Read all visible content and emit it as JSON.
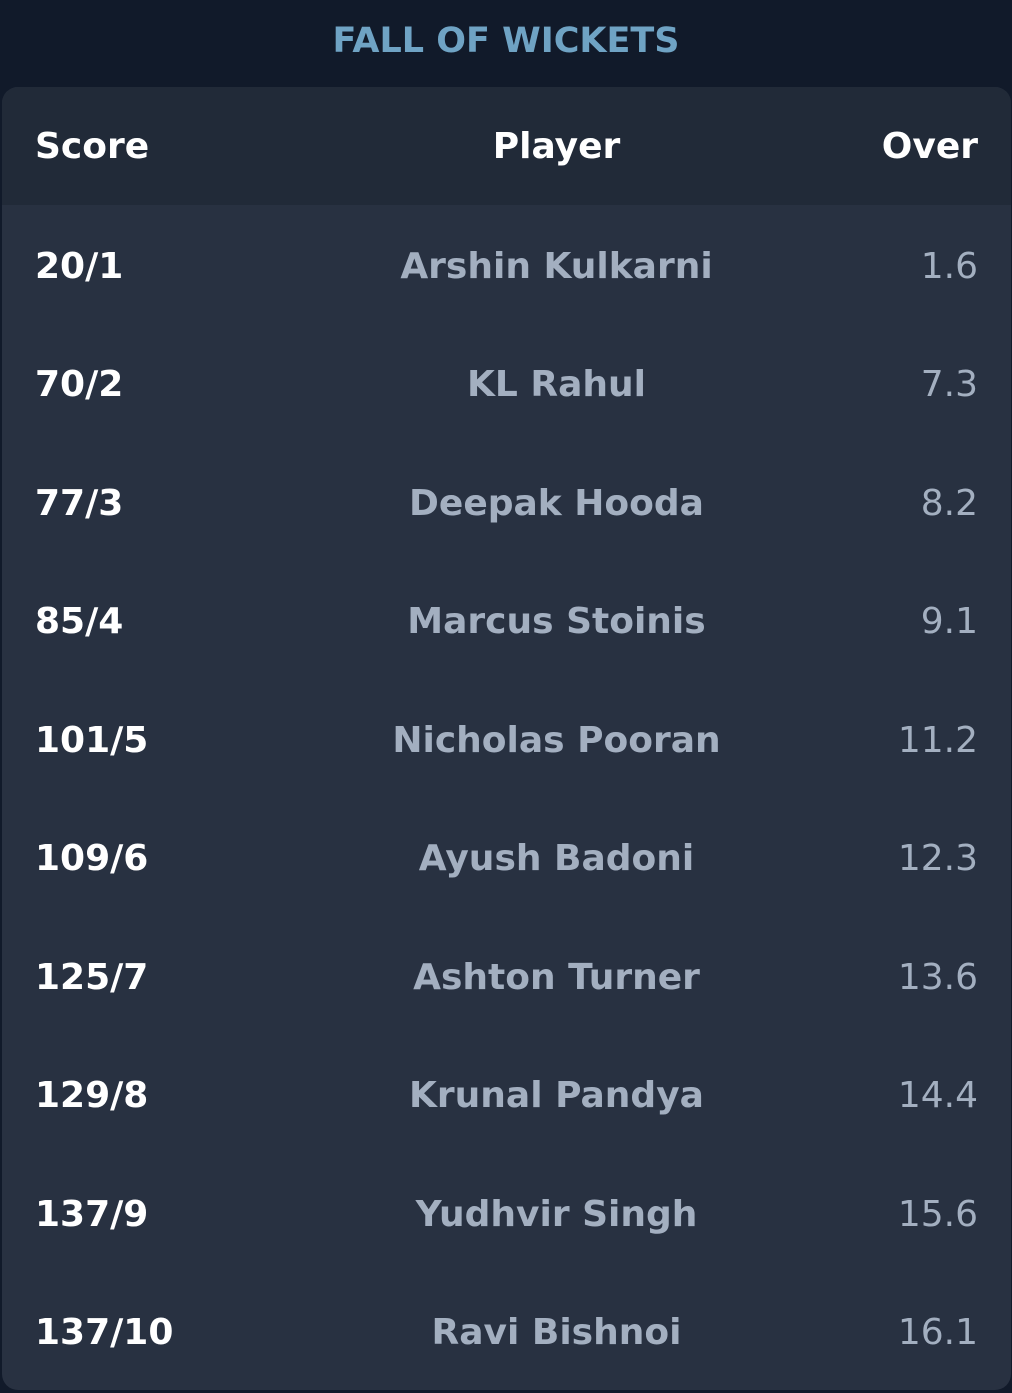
{
  "section": {
    "title": "FALL OF WICKETS"
  },
  "table": {
    "headers": {
      "score": "Score",
      "player": "Player",
      "over": "Over"
    },
    "rows": [
      {
        "score": "20/1",
        "player": "Arshin Kulkarni",
        "over": "1.6"
      },
      {
        "score": "70/2",
        "player": "KL Rahul",
        "over": "7.3"
      },
      {
        "score": "77/3",
        "player": "Deepak Hooda",
        "over": "8.2"
      },
      {
        "score": "85/4",
        "player": "Marcus Stoinis",
        "over": "9.1"
      },
      {
        "score": "101/5",
        "player": "Nicholas Pooran",
        "over": "11.2"
      },
      {
        "score": "109/6",
        "player": "Ayush Badoni",
        "over": "12.3"
      },
      {
        "score": "125/7",
        "player": "Ashton Turner",
        "over": "13.6"
      },
      {
        "score": "129/8",
        "player": "Krunal Pandya",
        "over": "14.4"
      },
      {
        "score": "137/9",
        "player": "Yudhvir Singh",
        "over": "15.6"
      },
      {
        "score": "137/10",
        "player": "Ravi Bishnoi",
        "over": "16.1"
      }
    ]
  },
  "colors": {
    "page_background": "#111a2a",
    "card_background": "#283141",
    "header_background": "#212a38",
    "title_color": "#6fa3c4",
    "score_text": "#ffffff",
    "secondary_text": "#a3afc0"
  }
}
